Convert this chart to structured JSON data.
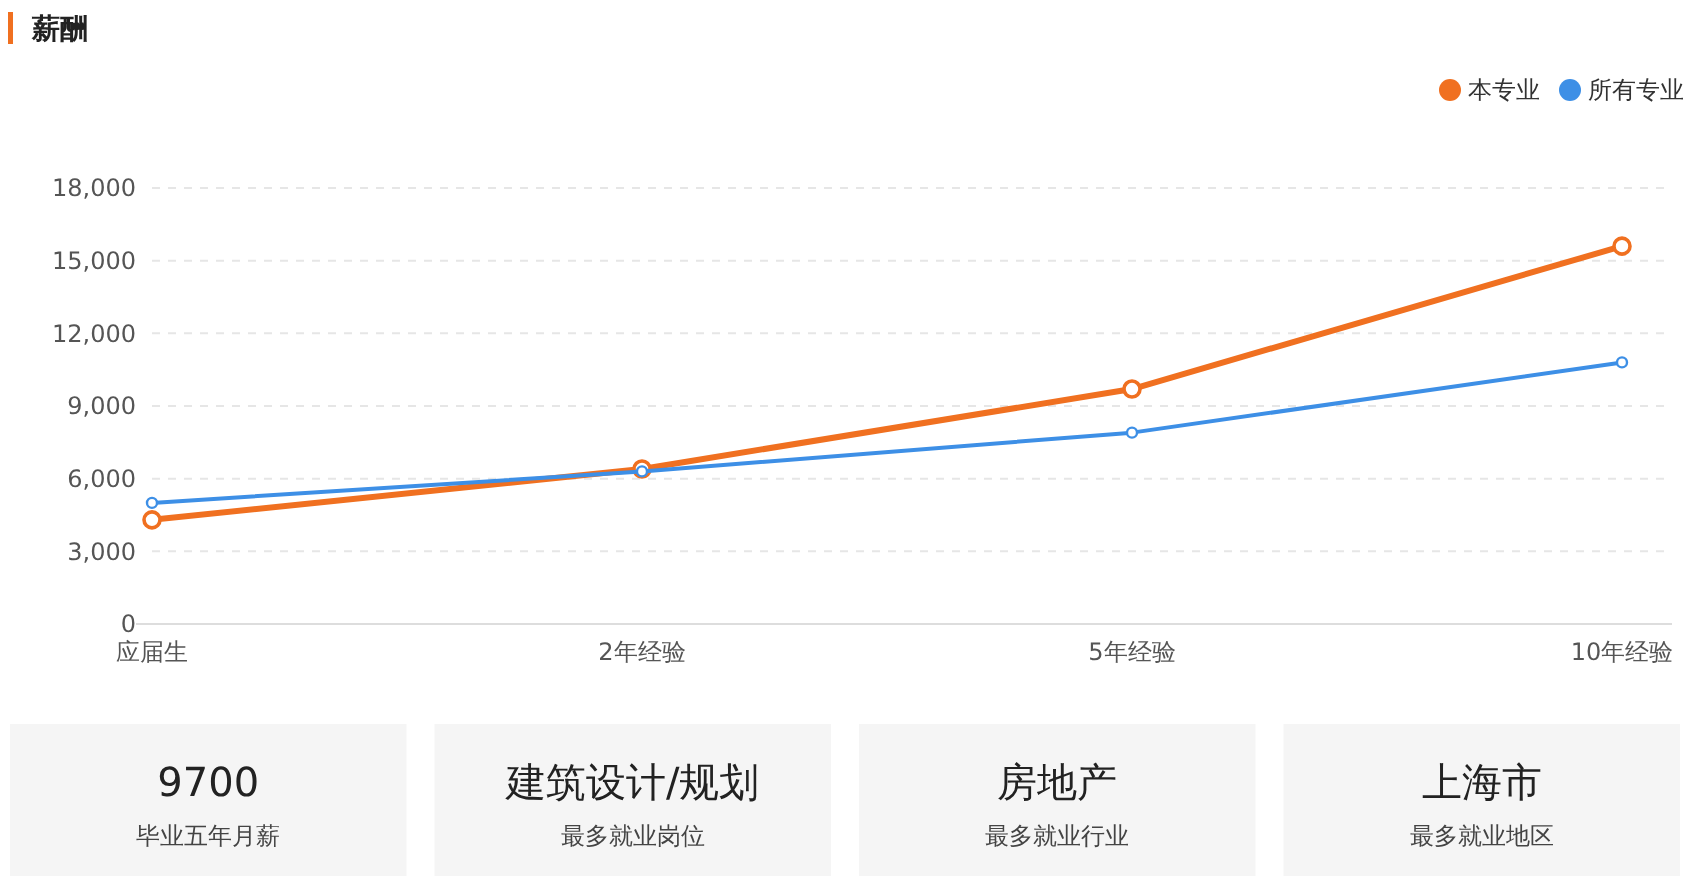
{
  "chart_data": [
    {
      "type": "line",
      "title": "薪酬",
      "categories": [
        "应届生",
        "2年经验",
        "5年经验",
        "10年经验"
      ],
      "series": [
        {
          "name": "本专业",
          "color": "#f07020",
          "values": [
            4300,
            6400,
            9700,
            15600
          ]
        },
        {
          "name": "所有专业",
          "color": "#3d8fe6",
          "values": [
            5000,
            6300,
            7900,
            10800
          ]
        }
      ],
      "ylim": [
        0,
        18000
      ],
      "yticks": [
        0,
        {
          "value": 3000,
          "label": "3,000"
        },
        {
          "value": 6000,
          "label": "6,000"
        },
        {
          "value": 9000,
          "label": "9,000"
        },
        {
          "value": 12000,
          "label": "12,000"
        },
        {
          "value": 15000,
          "label": "15,000"
        },
        {
          "value": 18000,
          "label": "18,000"
        }
      ],
      "grid": "y",
      "legend": "top right",
      "marker": "circle",
      "line_style": "solid"
    },
    {
      "type": "other",
      "categories": [
        "毕业五年月薪",
        "最多就业岗位",
        "最多就业行业",
        "最多就业地区"
      ],
      "value_labels": [
        "9700",
        "建筑设计/规划",
        "房地产",
        "上海市"
      ]
    }
  ]
}
